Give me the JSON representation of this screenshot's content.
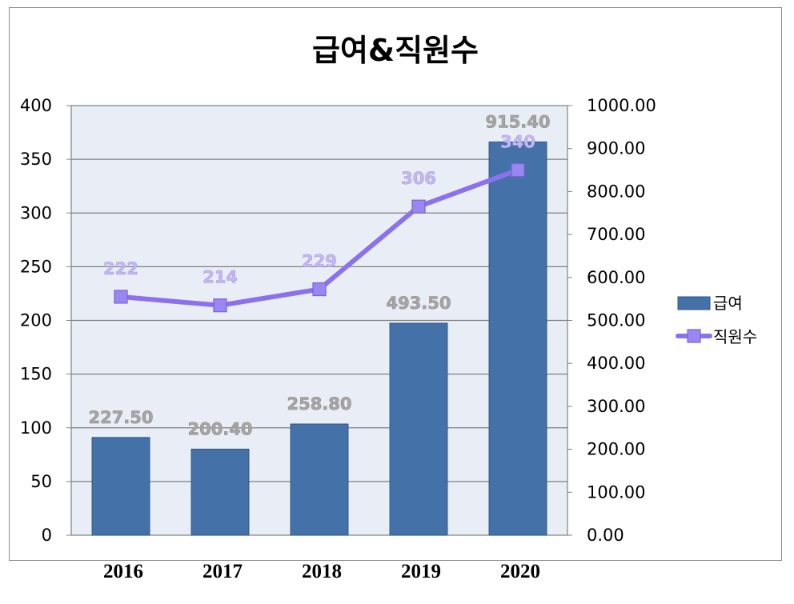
{
  "chart_data": {
    "type": "bar",
    "title": "급여&직원수",
    "categories": [
      "2016",
      "2017",
      "2018",
      "2019",
      "2020"
    ],
    "series": [
      {
        "name": "급여",
        "type": "bar",
        "axis": "right",
        "values": [
          227.5,
          200.4,
          258.8,
          493.5,
          915.4
        ],
        "labels": [
          "227.50",
          "200.40",
          "258.80",
          "493.50",
          "915.40"
        ],
        "color": "#4472a8"
      },
      {
        "name": "직원수",
        "type": "line",
        "axis": "left",
        "values": [
          222,
          214,
          229,
          306,
          340
        ],
        "labels": [
          "222",
          "214",
          "229",
          "306",
          "340"
        ],
        "color": "#8b72ec"
      }
    ],
    "y_left": {
      "ticks": [
        "0",
        "50",
        "100",
        "150",
        "200",
        "250",
        "300",
        "350",
        "400"
      ],
      "ylim": [
        0,
        400
      ]
    },
    "y_right": {
      "ticks": [
        "0.00",
        "100.00",
        "200.00",
        "300.00",
        "400.00",
        "500.00",
        "600.00",
        "700.00",
        "800.00",
        "900.00",
        "1000.00"
      ],
      "ylim": [
        0,
        1000
      ]
    },
    "grid": true,
    "legend": "right",
    "plot_background": "#e9edf5"
  }
}
